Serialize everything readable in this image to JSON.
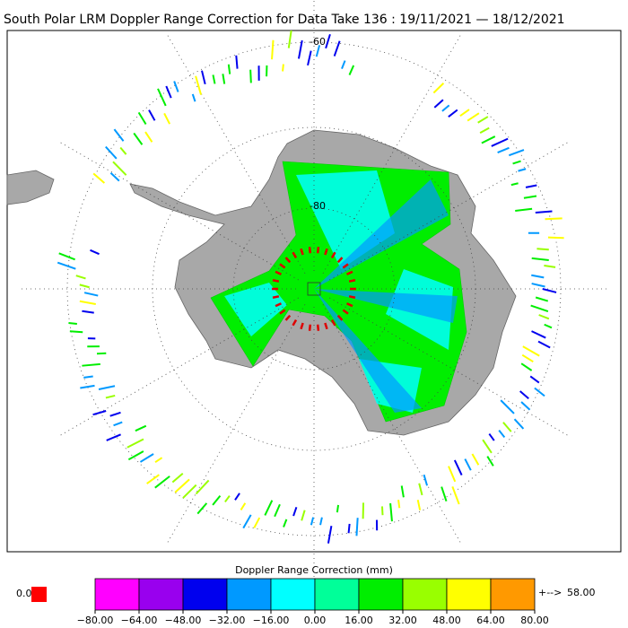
{
  "title": "South Polar LRM Doppler Range Correction for Data Take 136 : 19/11/2021 — 18/12/2021",
  "latitude_labels": [
    "-60",
    "-80"
  ],
  "colorbar": {
    "label": "Doppler Range Correction (mm)",
    "colors": [
      "#ff00ff",
      "#9900ee",
      "#0000ee",
      "#0099ff",
      "#00ffff",
      "#00ff99",
      "#00ee00",
      "#99ff00",
      "#ffff00",
      "#ff9900"
    ],
    "ticks": [
      {
        "value": -80,
        "label": "−80.00"
      },
      {
        "value": -64,
        "label": "−64.00"
      },
      {
        "value": -48,
        "label": "−48.00"
      },
      {
        "value": -32,
        "label": "−32.00"
      },
      {
        "value": -16,
        "label": "−16.00"
      },
      {
        "value": 0,
        "label": "0.00"
      },
      {
        "value": 16,
        "label": "16.00"
      },
      {
        "value": 32,
        "label": "32.00"
      },
      {
        "value": 48,
        "label": "48.00"
      },
      {
        "value": 64,
        "label": "64.00"
      },
      {
        "value": 80,
        "label": "80.00"
      }
    ]
  },
  "below_range": {
    "label": "0.0",
    "color": "#ff0000"
  },
  "above_range": {
    "arrow": "+-->",
    "label": "58.00",
    "color": "#ff9900"
  }
}
